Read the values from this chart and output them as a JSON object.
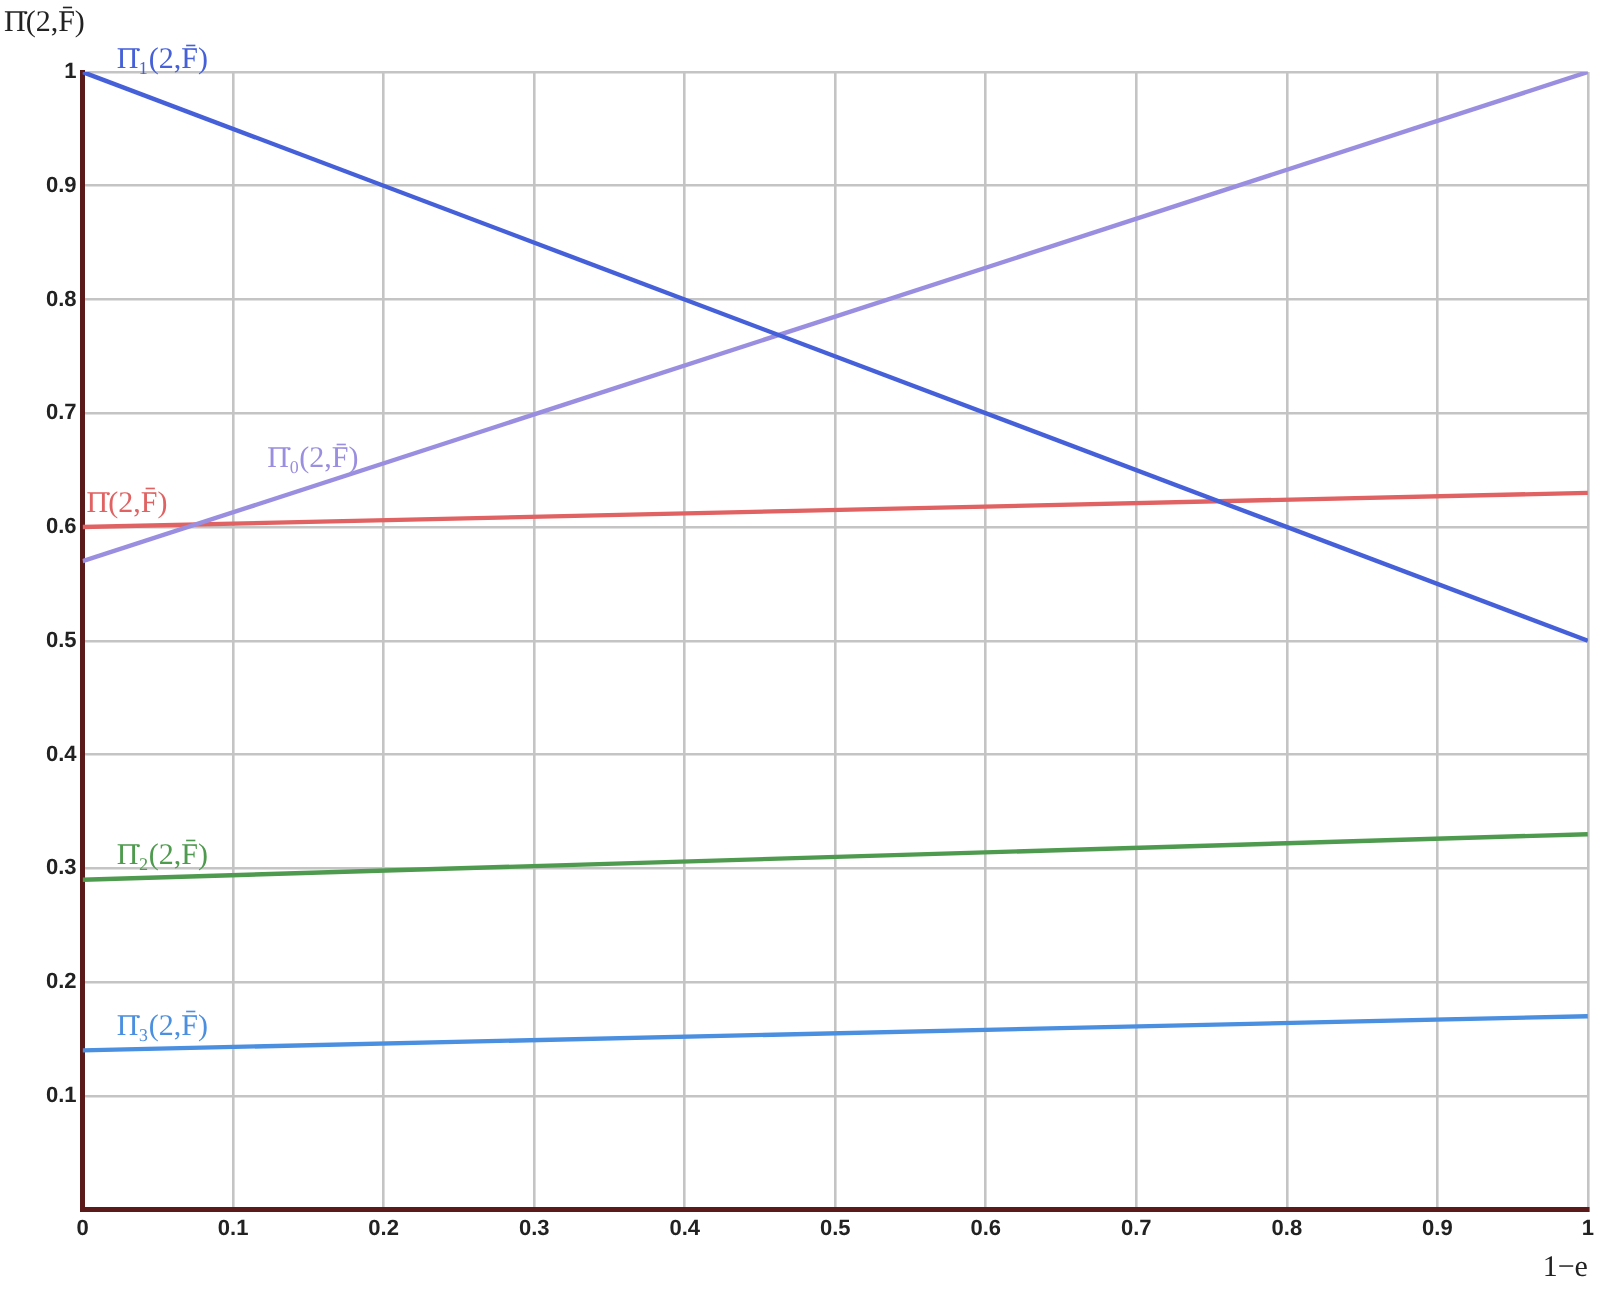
{
  "chart_data": {
    "type": "line",
    "xlabel": "1−e",
    "ylabel": "Π̇(2,F̄)",
    "x": [
      0,
      1
    ],
    "series": [
      {
        "name": "Π̇₁(2,F̄)",
        "color": "#4560d8",
        "values": [
          1,
          0.5
        ]
      },
      {
        "name": "Π̇₀(2,F̄)",
        "color": "#9a8ee0",
        "values": [
          0.57,
          1
        ]
      },
      {
        "name": "Π̇(2,F̄)",
        "color": "#e06262",
        "values": [
          0.6,
          0.63
        ]
      },
      {
        "name": "Π̇₂(2,F̄)",
        "color": "#4e9a4e",
        "values": [
          0.29,
          0.33
        ]
      },
      {
        "name": "Π̇₃(2,F̄)",
        "color": "#4a8fe0",
        "values": [
          0.14,
          0.17
        ]
      }
    ],
    "xlim": [
      0,
      1
    ],
    "ylim": [
      0,
      1
    ],
    "xticks": [
      0,
      0.1,
      0.2,
      0.3,
      0.4,
      0.5,
      0.6,
      0.7,
      0.8,
      0.9,
      1
    ],
    "yticks": [
      {
        "value": 0,
        "label": null
      },
      0.1,
      0.2,
      0.3,
      0.4,
      0.5,
      0.6,
      0.7,
      0.8,
      0.9,
      1
    ],
    "grid": true,
    "legend": false,
    "marker": "none",
    "line_style": "solid"
  }
}
